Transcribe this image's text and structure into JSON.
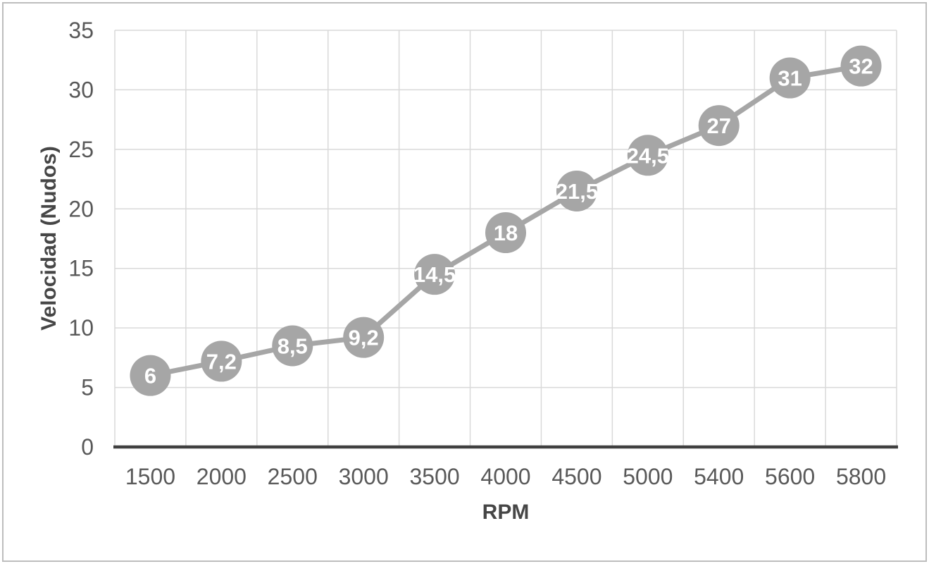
{
  "chart_data": {
    "type": "line",
    "title": "",
    "xlabel": "RPM",
    "ylabel": "Velocidad (Nudos)",
    "categories": [
      "1500",
      "2000",
      "2500",
      "3000",
      "3500",
      "4000",
      "4500",
      "5000",
      "5400",
      "5600",
      "5800"
    ],
    "series": [
      {
        "name": "Velocidad",
        "values": [
          6,
          7.2,
          8.5,
          9.2,
          14.5,
          18,
          21.5,
          24.5,
          27,
          31,
          32
        ],
        "value_labels": [
          "6",
          "7,2",
          "8,5",
          "9,2",
          "14,5",
          "18",
          "21,5",
          "24,5",
          "27",
          "31",
          "32"
        ]
      }
    ],
    "y_ticks": [
      0,
      5,
      10,
      15,
      20,
      25,
      30,
      35
    ],
    "ylim": [
      0,
      35
    ],
    "grid": true,
    "legend_position": "none",
    "marker_style": "filled-circle-with-label",
    "colors": {
      "series": "#a6a6a6",
      "data_label_text": "#ffffff",
      "gridline": "#d9d9d9",
      "tick_text": "#595959",
      "axis_title_text": "#464646",
      "axis_line": "#404040",
      "frame_border": "#bdbdbd",
      "background": "#ffffff"
    }
  }
}
